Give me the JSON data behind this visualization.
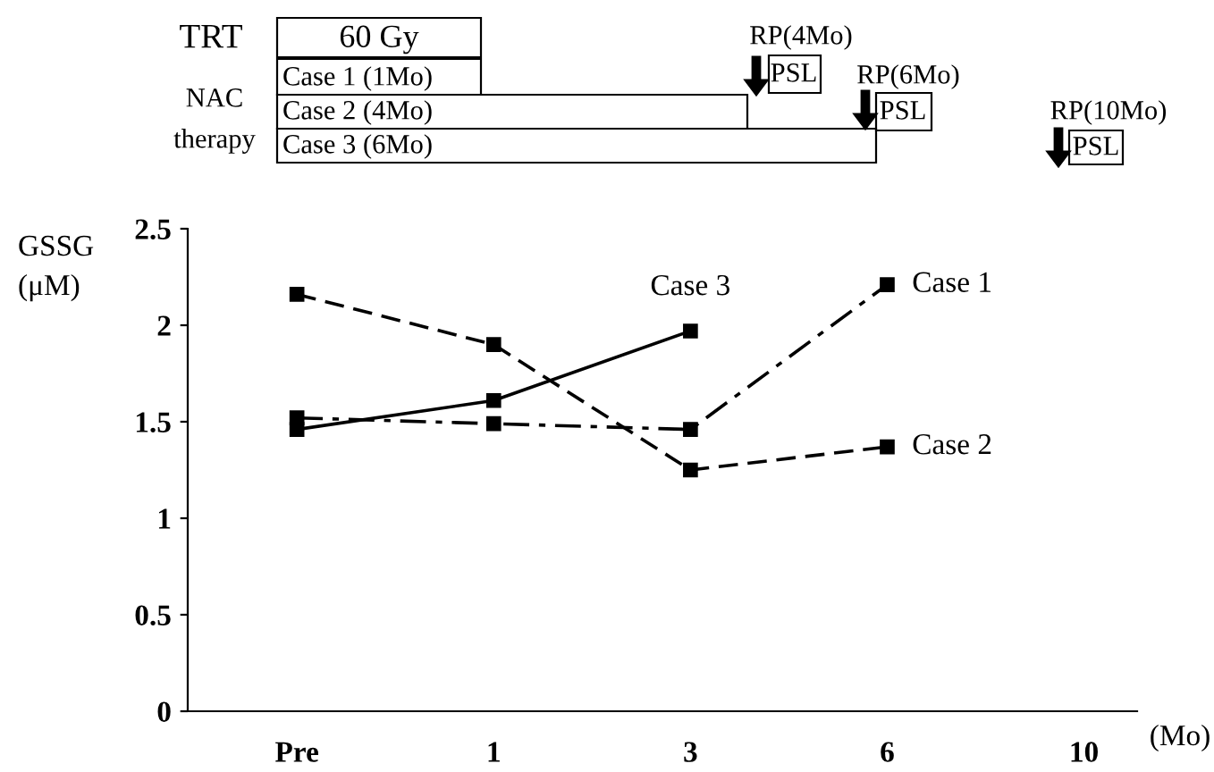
{
  "chart_data": {
    "type": "line",
    "ylabel": "GSSG\n(μM)",
    "xlabel": "(Mo)",
    "categories": [
      "Pre",
      "1",
      "3",
      "6",
      "10"
    ],
    "series": [
      {
        "name": "Case 1",
        "color": "#000000",
        "line_style": "dashdot",
        "values": [
          1.52,
          1.49,
          1.46,
          2.21,
          null
        ]
      },
      {
        "name": "Case 2",
        "color": "#000000",
        "line_style": "dashed",
        "values": [
          2.16,
          1.9,
          1.25,
          1.37,
          null
        ]
      },
      {
        "name": "Case 3",
        "color": "#000000",
        "line_style": "solid",
        "values": [
          1.46,
          1.61,
          1.97,
          null,
          null
        ]
      }
    ],
    "ylim": [
      0,
      2.5
    ],
    "yticks": [
      0,
      0.5,
      1,
      1.5,
      2,
      2.5
    ],
    "marker": "square",
    "grid": false,
    "legend": false,
    "annotations": [
      "TRT",
      "60 Gy",
      "NAC",
      "therapy",
      "Case 1 (1Mo)",
      "Case 2 (4Mo)",
      "Case 3 (6Mo)",
      "RP(4Mo)",
      "PSL",
      "RP(6Mo)",
      "PSL",
      "RP(10Mo)",
      "PSL"
    ]
  }
}
